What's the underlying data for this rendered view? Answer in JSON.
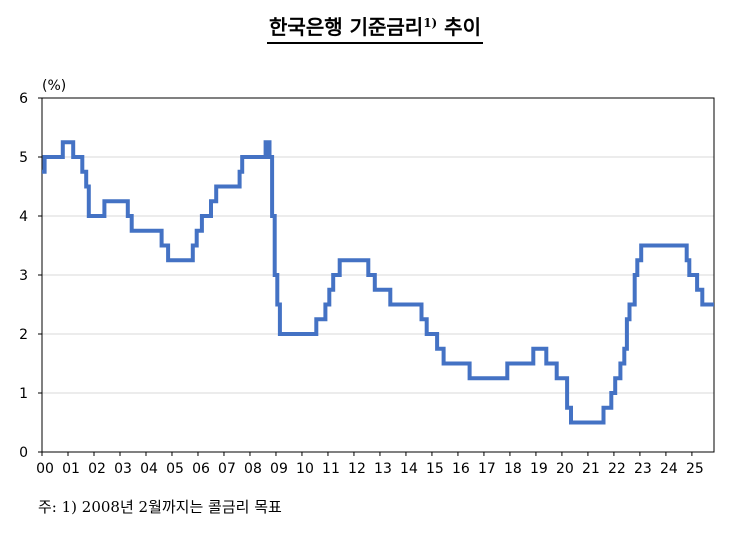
{
  "title_main": "한국은행 기준금리",
  "title_sup": "1)",
  "title_suffix": " 추이",
  "unit_label": "(%)",
  "footnote": "주: 1) 2008년 2월까지는 콜금리 목표",
  "colors": {
    "line": "#4472c4",
    "grid": "#d9d9d9",
    "axis": "#000000"
  },
  "chart_data": {
    "type": "line",
    "line_style": "step",
    "title": "한국은행 기준금리 추이",
    "ylabel": "(%)",
    "xlabel": "",
    "xlim": [
      2000.0,
      2025.85
    ],
    "ylim": [
      0,
      6
    ],
    "yticks": [
      0,
      1,
      2,
      3,
      4,
      5,
      6
    ],
    "xtick_labels": [
      "00",
      "01",
      "02",
      "03",
      "04",
      "05",
      "06",
      "07",
      "08",
      "09",
      "10",
      "11",
      "12",
      "13",
      "14",
      "15",
      "16",
      "17",
      "18",
      "19",
      "20",
      "21",
      "22",
      "23",
      "24",
      "25"
    ],
    "grid": "horizontal",
    "series": [
      {
        "values": [
          [
            2000.0,
            4.75
          ],
          [
            2000.1,
            5.0
          ],
          [
            2000.8,
            5.25
          ],
          [
            2001.2,
            5.0
          ],
          [
            2001.55,
            4.75
          ],
          [
            2001.7,
            4.5
          ],
          [
            2001.8,
            4.0
          ],
          [
            2002.4,
            4.25
          ],
          [
            2003.3,
            4.0
          ],
          [
            2003.45,
            3.75
          ],
          [
            2004.6,
            3.5
          ],
          [
            2004.85,
            3.25
          ],
          [
            2005.8,
            3.5
          ],
          [
            2005.95,
            3.75
          ],
          [
            2006.15,
            4.0
          ],
          [
            2006.5,
            4.25
          ],
          [
            2006.7,
            4.5
          ],
          [
            2007.6,
            4.75
          ],
          [
            2007.7,
            5.0
          ],
          [
            2008.6,
            5.25
          ],
          [
            2008.75,
            5.0
          ],
          [
            2008.85,
            4.0
          ],
          [
            2008.95,
            3.0
          ],
          [
            2009.05,
            2.5
          ],
          [
            2009.15,
            2.0
          ],
          [
            2010.55,
            2.25
          ],
          [
            2010.9,
            2.5
          ],
          [
            2011.05,
            2.75
          ],
          [
            2011.2,
            3.0
          ],
          [
            2011.45,
            3.25
          ],
          [
            2012.55,
            3.0
          ],
          [
            2012.8,
            2.75
          ],
          [
            2013.4,
            2.5
          ],
          [
            2014.6,
            2.25
          ],
          [
            2014.8,
            2.0
          ],
          [
            2015.2,
            1.75
          ],
          [
            2015.45,
            1.5
          ],
          [
            2016.45,
            1.25
          ],
          [
            2017.9,
            1.5
          ],
          [
            2018.9,
            1.75
          ],
          [
            2019.4,
            1.5
          ],
          [
            2019.8,
            1.25
          ],
          [
            2020.2,
            0.75
          ],
          [
            2020.35,
            0.5
          ],
          [
            2021.6,
            0.75
          ],
          [
            2021.9,
            1.0
          ],
          [
            2022.05,
            1.25
          ],
          [
            2022.25,
            1.5
          ],
          [
            2022.4,
            1.75
          ],
          [
            2022.5,
            2.25
          ],
          [
            2022.6,
            2.5
          ],
          [
            2022.8,
            3.0
          ],
          [
            2022.9,
            3.25
          ],
          [
            2023.05,
            3.5
          ],
          [
            2024.8,
            3.25
          ],
          [
            2024.9,
            3.0
          ],
          [
            2025.2,
            2.75
          ],
          [
            2025.4,
            2.5
          ],
          [
            2025.85,
            2.5
          ]
        ]
      }
    ]
  }
}
